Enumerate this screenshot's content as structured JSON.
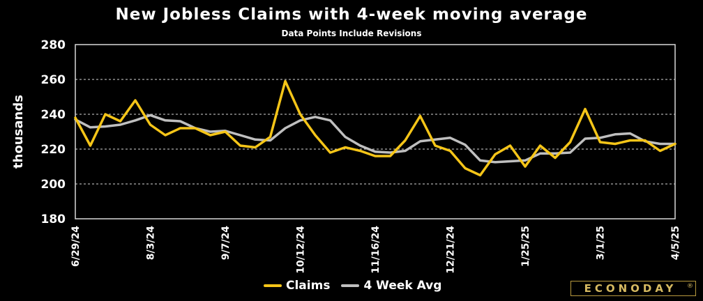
{
  "colors": {
    "claims": "#f5c518",
    "avg": "#bfbfbf",
    "logo": "#d6ba61"
  },
  "legend": {
    "claims_label": "Claims",
    "avg_label": "4 Week Avg"
  },
  "logo": {
    "text": "ECONODAY",
    "mark": "®"
  },
  "chart_data": {
    "type": "line",
    "title": "New Jobless Claims with 4-week moving average",
    "subtitle": "Data Points Include Revisions",
    "xlabel": "",
    "ylabel": "thousands",
    "ylim": [
      180,
      280
    ],
    "yticks": [
      180,
      200,
      220,
      240,
      260,
      280
    ],
    "grid": true,
    "legend_position": "bottom",
    "x_tick_labels": [
      "6/29/24",
      "8/3/24",
      "9/7/24",
      "10/12/24",
      "11/16/24",
      "12/21/24",
      "1/25/25",
      "3/1/25",
      "4/5/25"
    ],
    "x_tick_indices": [
      0,
      5,
      10,
      15,
      20,
      25,
      30,
      35,
      40
    ],
    "series": [
      {
        "name": "Claims",
        "values": [
          238,
          222,
          240,
          236,
          248,
          234,
          228,
          232,
          232,
          228,
          230,
          222,
          221,
          227,
          259,
          240,
          228,
          218,
          221,
          219,
          216,
          216,
          225,
          239,
          222,
          219,
          209,
          205,
          217,
          222,
          210,
          222,
          215,
          224,
          243,
          224,
          223,
          225,
          225,
          219,
          223
        ]
      },
      {
        "name": "4 Week Avg",
        "values": [
          237,
          232.5,
          233,
          234,
          236.5,
          239.5,
          236.5,
          236,
          232,
          230,
          230.5,
          228,
          225.5,
          225,
          232,
          236.5,
          238.5,
          236.5,
          227,
          222,
          218.5,
          218,
          219,
          224.5,
          225.5,
          226.5,
          222.5,
          213.5,
          212.5,
          213,
          213.5,
          217.5,
          217.5,
          218,
          226,
          226.5,
          228.5,
          229,
          224.5,
          223,
          223
        ]
      }
    ]
  }
}
